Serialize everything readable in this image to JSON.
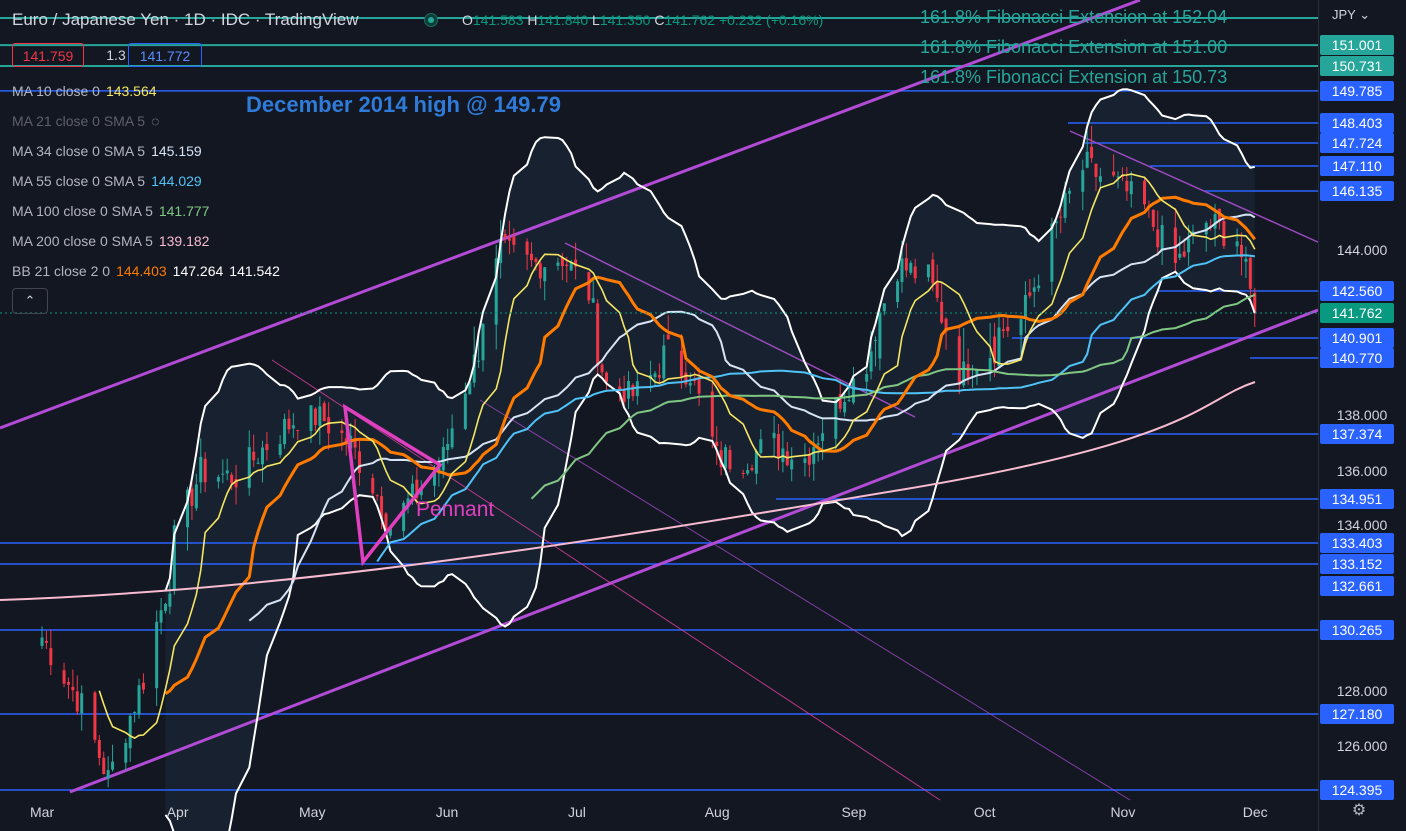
{
  "header": {
    "title": "Euro / Japanese Yen · 1D · IDC · TradingView",
    "ohlc": {
      "o_label": "O",
      "o": "141.583",
      "h_label": "H",
      "h": "141.840",
      "l_label": "L",
      "l": "141.350",
      "c_label": "C",
      "c": "141.762",
      "change": "+0.232 (+0.16%)"
    },
    "sell_price": "141.759",
    "spread": "1.3",
    "buy_price": "141.772"
  },
  "indicators": [
    {
      "label": "MA 10 close 0",
      "value": "143.564",
      "color": "#f5e663"
    },
    {
      "label": "MA 21 close 0 SMA 5",
      "value": "",
      "color": "#787b86",
      "hidden": true
    },
    {
      "label": "MA 34 close 0 SMA 5",
      "value": "145.159",
      "color": "#d6e4f5"
    },
    {
      "label": "MA 55 close 0 SMA 5",
      "value": "144.029",
      "color": "#4fc3f7"
    },
    {
      "label": "MA 100 close 0 SMA 5",
      "value": "141.777",
      "color": "#81c784"
    },
    {
      "label": "MA 200 close 0 SMA 5",
      "value": "139.182",
      "color": "#f8bbd0"
    },
    {
      "label": "BB 21 close 2 0",
      "value": "144.403",
      "value2": "147.264",
      "value3": "141.542",
      "color": "#ff7b00"
    }
  ],
  "annotations": {
    "fibo": [
      {
        "text": "161.8% Fibonacci Extension at 152.04"
      },
      {
        "text": "161.8% Fibonacci Extension at 151.00"
      },
      {
        "text": "161.8% Fibonacci Extension at 150.73"
      }
    ],
    "december_high": "December 2014 high @ 149.79",
    "pennant": "Pennant"
  },
  "colors": {
    "background": "#131722",
    "up": "#26a69a",
    "down": "#f23645",
    "hline": "#2962ff",
    "fibo": "#26a69a",
    "channel": "#b24bd6",
    "pennant": "#e040c0"
  },
  "chart_data": {
    "type": "candlestick",
    "symbol": "Euro / Japanese Yen",
    "interval": "1D",
    "currency": "JPY",
    "y_ticks": [
      "144.000",
      "138.000",
      "136.000",
      "134.000",
      "128.000",
      "126.000"
    ],
    "x_ticks": [
      "Mar",
      "Apr",
      "May",
      "Jun",
      "Jul",
      "Aug",
      "Sep",
      "Oct",
      "Nov",
      "Dec"
    ],
    "price_labels": [
      {
        "value": "151.001",
        "color": "#26a69a"
      },
      {
        "value": "150.731",
        "color": "#26a69a"
      },
      {
        "value": "149.785",
        "color": "#2962ff"
      },
      {
        "value": "148.403",
        "color": "#2962ff"
      },
      {
        "value": "147.724",
        "color": "#2962ff"
      },
      {
        "value": "147.110",
        "color": "#2962ff"
      },
      {
        "value": "146.135",
        "color": "#2962ff"
      },
      {
        "value": "142.560",
        "color": "#2962ff"
      },
      {
        "value": "141.762",
        "color": "#089981"
      },
      {
        "value": "140.901",
        "color": "#2962ff"
      },
      {
        "value": "140.770",
        "color": "#2962ff"
      },
      {
        "value": "137.374",
        "color": "#2962ff"
      },
      {
        "value": "134.951",
        "color": "#2962ff"
      },
      {
        "value": "133.403",
        "color": "#2962ff"
      },
      {
        "value": "133.152",
        "color": "#2962ff"
      },
      {
        "value": "132.661",
        "color": "#2962ff"
      },
      {
        "value": "130.265",
        "color": "#2962ff"
      },
      {
        "value": "127.180",
        "color": "#2962ff"
      },
      {
        "value": "124.395",
        "color": "#2962ff"
      }
    ],
    "horizontal_levels": [
      152.04,
      151.0,
      150.73,
      149.79,
      148.403,
      147.724,
      147.11,
      146.135,
      142.56,
      140.901,
      140.77,
      137.374,
      134.951,
      133.403,
      133.152,
      130.265,
      127.18,
      124.395
    ],
    "close_path": [
      {
        "date": "2023-03-01",
        "close": 130.0
      },
      {
        "date": "2023-03-10",
        "close": 127.5
      },
      {
        "date": "2023-03-16",
        "close": 124.8
      },
      {
        "date": "2023-03-24",
        "close": 128.5
      },
      {
        "date": "2023-03-31",
        "close": 133.5
      },
      {
        "date": "2023-04-06",
        "close": 136.0
      },
      {
        "date": "2023-04-14",
        "close": 135.8
      },
      {
        "date": "2023-04-21",
        "close": 137.0
      },
      {
        "date": "2023-04-28",
        "close": 138.0
      },
      {
        "date": "2023-05-03",
        "close": 138.0
      },
      {
        "date": "2023-05-10",
        "close": 137.0
      },
      {
        "date": "2023-05-15",
        "close": 135.5
      },
      {
        "date": "2023-05-19",
        "close": 134.0
      },
      {
        "date": "2023-05-24",
        "close": 135.0
      },
      {
        "date": "2023-05-31",
        "close": 136.5
      },
      {
        "date": "2023-06-07",
        "close": 140.5
      },
      {
        "date": "2023-06-13",
        "close": 144.0
      },
      {
        "date": "2023-06-20",
        "close": 143.5
      },
      {
        "date": "2023-06-27",
        "close": 143.8
      },
      {
        "date": "2023-07-03",
        "close": 142.5
      },
      {
        "date": "2023-07-07",
        "close": 139.5
      },
      {
        "date": "2023-07-13",
        "close": 139.0
      },
      {
        "date": "2023-07-20",
        "close": 140.5
      },
      {
        "date": "2023-07-26",
        "close": 140.0
      },
      {
        "date": "2023-08-01",
        "close": 136.5
      },
      {
        "date": "2023-08-07",
        "close": 136.5
      },
      {
        "date": "2023-08-14",
        "close": 137.0
      },
      {
        "date": "2023-08-21",
        "close": 136.5
      },
      {
        "date": "2023-08-28",
        "close": 138.5
      },
      {
        "date": "2023-09-04",
        "close": 140.5
      },
      {
        "date": "2023-09-11",
        "close": 143.5
      },
      {
        "date": "2023-09-18",
        "close": 143.0
      },
      {
        "date": "2023-09-25",
        "close": 140.0
      },
      {
        "date": "2023-10-02",
        "close": 141.0
      },
      {
        "date": "2023-10-09",
        "close": 141.5
      },
      {
        "date": "2023-10-16",
        "close": 144.5
      },
      {
        "date": "2023-10-23",
        "close": 147.0
      },
      {
        "date": "2023-10-30",
        "close": 146.5
      },
      {
        "date": "2023-11-06",
        "close": 145.5
      },
      {
        "date": "2023-11-13",
        "close": 143.5
      },
      {
        "date": "2023-11-20",
        "close": 145.0
      },
      {
        "date": "2023-11-27",
        "close": 144.5
      },
      {
        "date": "2023-12-01",
        "close": 141.762
      }
    ]
  }
}
